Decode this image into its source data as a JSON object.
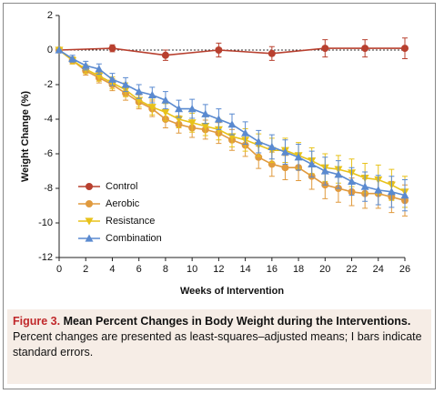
{
  "chart_data": {
    "type": "line",
    "xlabel": "Weeks of Intervention",
    "ylabel": "Weight Change (%)",
    "xlim": [
      0,
      26
    ],
    "xticks": [
      0,
      2,
      4,
      6,
      8,
      10,
      12,
      14,
      16,
      18,
      20,
      22,
      24,
      26
    ],
    "ylim": [
      -12,
      2
    ],
    "yticks": [
      -12,
      -10,
      -8,
      -6,
      -4,
      -2,
      0,
      2
    ],
    "legend": "lower-left",
    "series": [
      {
        "name": "Control",
        "color": "#b8402f",
        "marker": "circle",
        "x": [
          0,
          4,
          8,
          12,
          16,
          20,
          23,
          26
        ],
        "values": [
          0,
          0.1,
          -0.3,
          0,
          -0.2,
          0.1,
          0.1,
          0.1
        ],
        "errors": [
          0.1,
          0.2,
          0.3,
          0.4,
          0.4,
          0.5,
          0.5,
          0.6
        ]
      },
      {
        "name": "Aerobic",
        "color": "#e09a3e",
        "marker": "circle",
        "x": [
          0,
          1,
          2,
          3,
          4,
          5,
          6,
          7,
          8,
          9,
          10,
          11,
          12,
          13,
          14,
          15,
          16,
          17,
          18,
          19,
          20,
          21,
          22,
          23,
          24,
          25,
          26
        ],
        "values": [
          0,
          -0.6,
          -1.2,
          -1.6,
          -2.0,
          -2.5,
          -3.0,
          -3.4,
          -4.0,
          -4.3,
          -4.5,
          -4.6,
          -4.8,
          -5.2,
          -5.5,
          -6.2,
          -6.6,
          -6.8,
          -6.8,
          -7.3,
          -7.8,
          -8.0,
          -8.2,
          -8.3,
          -8.3,
          -8.5,
          -8.7
        ],
        "errors": [
          0,
          0.2,
          0.25,
          0.3,
          0.35,
          0.4,
          0.4,
          0.45,
          0.5,
          0.5,
          0.55,
          0.55,
          0.6,
          0.6,
          0.65,
          0.65,
          0.7,
          0.7,
          0.75,
          0.75,
          0.8,
          0.8,
          0.8,
          0.85,
          0.85,
          0.9,
          0.9
        ]
      },
      {
        "name": "Resistance",
        "color": "#e8c21a",
        "marker": "triangle-down",
        "x": [
          0,
          1,
          2,
          3,
          4,
          5,
          6,
          7,
          8,
          9,
          10,
          11,
          12,
          13,
          14,
          15,
          16,
          17,
          18,
          19,
          20,
          21,
          22,
          23,
          24,
          25,
          26
        ],
        "values": [
          0,
          -0.6,
          -1.1,
          -1.5,
          -1.9,
          -2.3,
          -2.9,
          -3.3,
          -3.6,
          -4.0,
          -4.2,
          -4.4,
          -4.6,
          -5.0,
          -5.2,
          -5.5,
          -5.8,
          -5.8,
          -6.1,
          -6.4,
          -6.8,
          -6.9,
          -7.1,
          -7.4,
          -7.5,
          -7.8,
          -8.2
        ],
        "errors": [
          0,
          0.2,
          0.25,
          0.3,
          0.35,
          0.4,
          0.4,
          0.45,
          0.5,
          0.5,
          0.55,
          0.55,
          0.6,
          0.6,
          0.65,
          0.65,
          0.7,
          0.7,
          0.75,
          0.75,
          0.8,
          0.8,
          0.8,
          0.85,
          0.85,
          0.9,
          0.9
        ]
      },
      {
        "name": "Combination",
        "color": "#5a8ad0",
        "marker": "triangle-up",
        "x": [
          0,
          1,
          2,
          3,
          4,
          5,
          6,
          7,
          8,
          9,
          10,
          11,
          12,
          13,
          14,
          15,
          16,
          17,
          18,
          19,
          20,
          21,
          22,
          23,
          24,
          25,
          26
        ],
        "values": [
          0,
          -0.5,
          -0.9,
          -1.1,
          -1.7,
          -2.0,
          -2.4,
          -2.6,
          -2.9,
          -3.4,
          -3.4,
          -3.7,
          -4.0,
          -4.3,
          -4.8,
          -5.3,
          -5.6,
          -5.9,
          -6.2,
          -6.6,
          -7.0,
          -7.2,
          -7.6,
          -7.9,
          -8.1,
          -8.2,
          -8.4
        ],
        "errors": [
          0,
          0.2,
          0.25,
          0.3,
          0.35,
          0.4,
          0.4,
          0.45,
          0.5,
          0.5,
          0.55,
          0.55,
          0.6,
          0.6,
          0.65,
          0.65,
          0.7,
          0.7,
          0.75,
          0.75,
          0.8,
          0.8,
          0.8,
          0.85,
          0.85,
          0.9,
          0.9
        ]
      }
    ]
  },
  "caption": {
    "label": "Figure 3.",
    "title": "Mean Percent Changes in Body Weight during the Interventions.",
    "text": "Percent changes are presented as least-squares–adjusted means; I bars indicate standard errors."
  }
}
